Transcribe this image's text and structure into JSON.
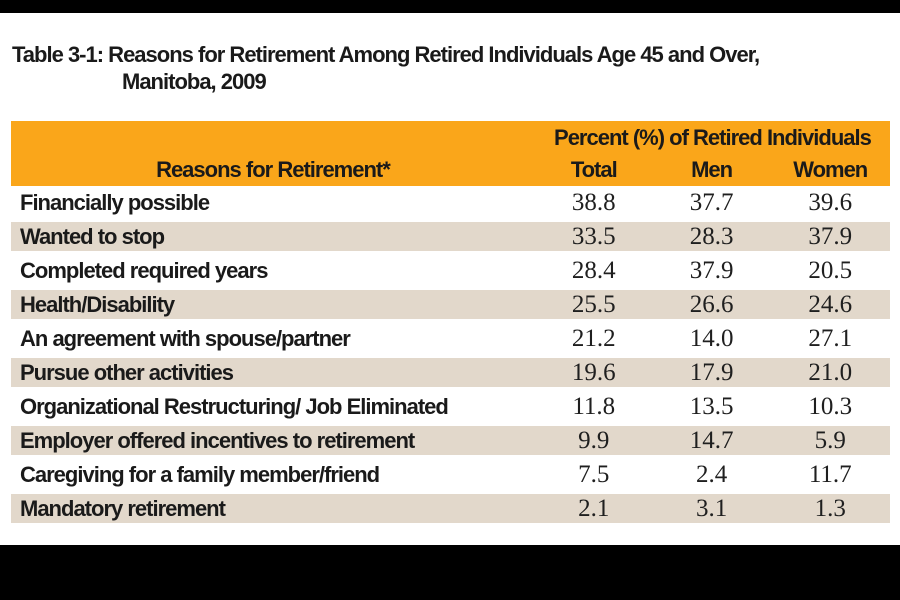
{
  "title": {
    "line1": "Table 3-1: Reasons for Retirement Among Retired Individuals Age 45 and Over,",
    "line2": "Manitoba, 2009"
  },
  "table": {
    "group_header": "Percent (%) of Retired Individuals",
    "label_column_header": "Reasons for Retirement*",
    "value_column_headers": [
      "Total",
      "Men",
      "Women"
    ],
    "rows": [
      {
        "label": "Financially possible",
        "total": "38.8",
        "men": "37.7",
        "women": "39.6"
      },
      {
        "label": "Wanted to stop",
        "total": "33.5",
        "men": "28.3",
        "women": "37.9"
      },
      {
        "label": "Completed required years",
        "total": "28.4",
        "men": "37.9",
        "women": "20.5"
      },
      {
        "label": "Health/Disability",
        "total": "25.5",
        "men": "26.6",
        "women": "24.6"
      },
      {
        "label": "An agreement with spouse/partner",
        "total": "21.2",
        "men": "14.0",
        "women": "27.1"
      },
      {
        "label": "Pursue other activities",
        "total": "19.6",
        "men": "17.9",
        "women": "21.0"
      },
      {
        "label": "Organizational Restructuring/ Job Eliminated",
        "total": "11.8",
        "men": "13.5",
        "women": "10.3"
      },
      {
        "label": "Employer offered incentives to retirement",
        "total": "9.9",
        "men": "14.7",
        "women": "5.9"
      },
      {
        "label": "Caregiving for a family member/friend",
        "total": "7.5",
        "men": "2.4",
        "women": "11.7"
      },
      {
        "label": "Mandatory retirement",
        "total": "2.1",
        "men": "3.1",
        "women": "1.3"
      }
    ],
    "colors": {
      "header_bg": "#FAA61A",
      "alt_row_bg": "#E2D8CB",
      "text": "#1a1a1a",
      "letterbox": "#000000"
    }
  },
  "chart_data": {
    "type": "table",
    "title": "Table 3-1: Reasons for Retirement Among Retired Individuals Age 45 and Over, Manitoba, 2009",
    "group_header": "Percent (%) of Retired Individuals",
    "columns": [
      "Reasons for Retirement*",
      "Total",
      "Men",
      "Women"
    ],
    "rows": [
      [
        "Financially possible",
        38.8,
        37.7,
        39.6
      ],
      [
        "Wanted to stop",
        33.5,
        28.3,
        37.9
      ],
      [
        "Completed required years",
        28.4,
        37.9,
        20.5
      ],
      [
        "Health/Disability",
        25.5,
        26.6,
        24.6
      ],
      [
        "An agreement with spouse/partner",
        21.2,
        14.0,
        27.1
      ],
      [
        "Pursue other activities",
        19.6,
        17.9,
        21.0
      ],
      [
        "Organizational Restructuring/ Job Eliminated",
        11.8,
        13.5,
        10.3
      ],
      [
        "Employer offered incentives to retirement",
        9.9,
        14.7,
        5.9
      ],
      [
        "Caregiving for a family member/friend",
        7.5,
        2.4,
        11.7
      ],
      [
        "Mandatory retirement",
        2.1,
        3.1,
        1.3
      ]
    ],
    "units": "percent",
    "notes": "Alternating beige/white row shading; amber header band"
  }
}
